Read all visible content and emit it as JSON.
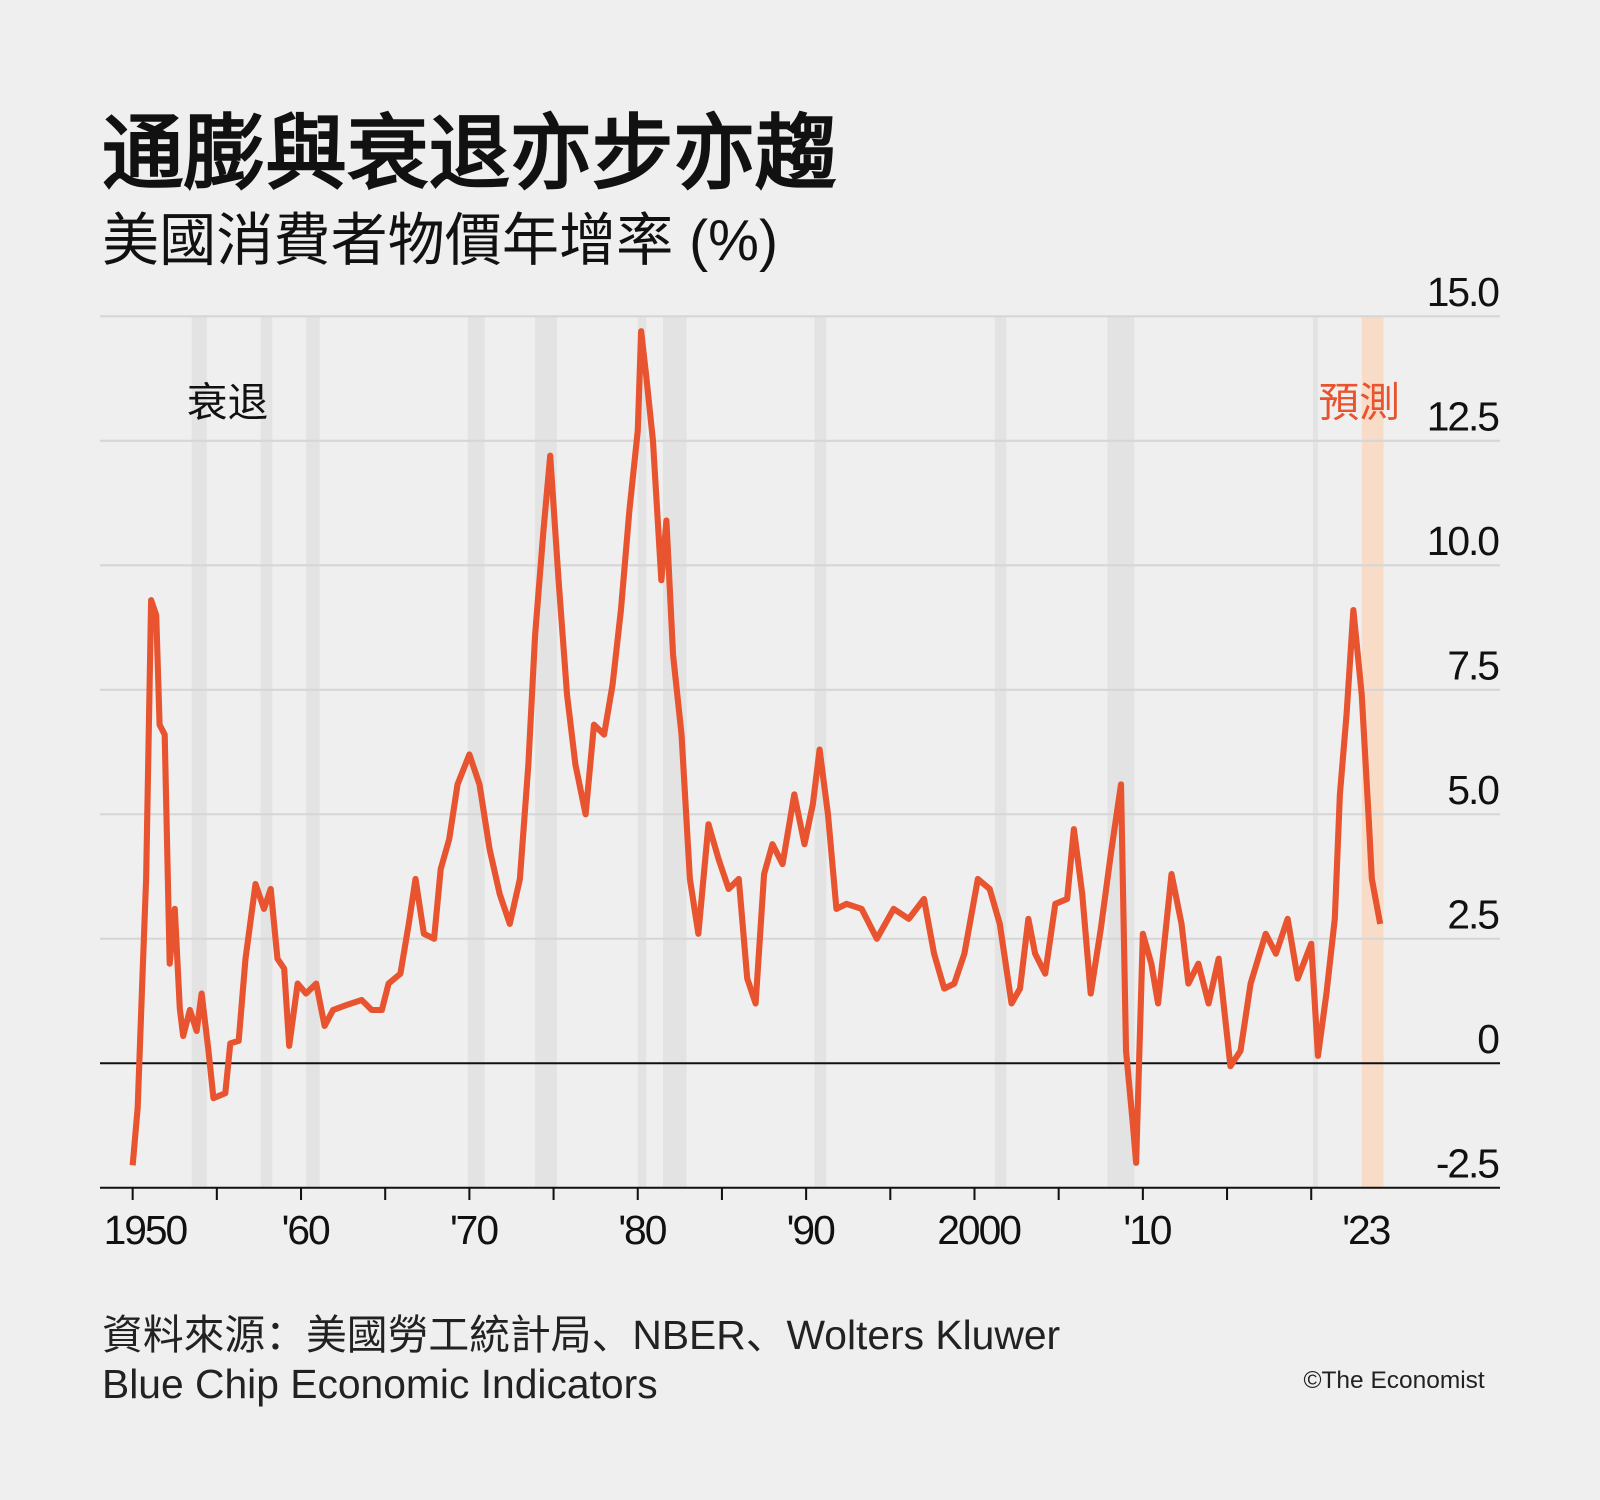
{
  "title": "通膨與衰退亦步亦趨",
  "subtitle": "美國消費者物價年增率 (%)",
  "source_line1": "資料來源：美國勞工統計局、NBER、Wolters Kluwer",
  "source_line2": "Blue Chip Economic Indicators",
  "copyright": "©The Economist",
  "colors": {
    "line": "#e8542f",
    "forecast_band": "#f9dcc8",
    "recession_band": "#e3e3e3",
    "background": "#efefef",
    "forecast_label": "#e8542f"
  },
  "chart_data": {
    "type": "line",
    "title": "通膨與衰退亦步亦趨",
    "ylabel": "美國消費者物價年增率 (%)",
    "ylim": [
      -2.5,
      15
    ],
    "yticks": [
      "15.0",
      "12.5",
      "10.0",
      "7.5",
      "5.0",
      "2.5",
      "0",
      "-2.5"
    ],
    "ytick_values": [
      15,
      12.5,
      10,
      7.5,
      5,
      2.5,
      0,
      -2.5
    ],
    "xlim": [
      1948,
      2027
    ],
    "xticks": [
      {
        "year": 1950,
        "label": "1950"
      },
      {
        "year": 1960,
        "label": "'60"
      },
      {
        "year": 1970,
        "label": "'70"
      },
      {
        "year": 1980,
        "label": "'80"
      },
      {
        "year": 1990,
        "label": "'90"
      },
      {
        "year": 2000,
        "label": "2000"
      },
      {
        "year": 2010,
        "label": "'10"
      },
      {
        "year": 2023,
        "label": "'23"
      }
    ],
    "minor_tick_years": [
      1950,
      1955,
      1960,
      1965,
      1970,
      1975,
      1980,
      1985,
      1990,
      1995,
      2000,
      2005,
      2010,
      2015,
      2020
    ],
    "grid": true,
    "recession_label": "衰退",
    "forecast_label": "預測",
    "forecast_period": [
      2023.0,
      2024.3
    ],
    "recessions": [
      [
        1953.5,
        1954.4
      ],
      [
        1957.6,
        1958.3
      ],
      [
        1960.3,
        1961.1
      ],
      [
        1969.9,
        1970.9
      ],
      [
        1973.9,
        1975.2
      ],
      [
        1980.0,
        1980.5
      ],
      [
        1981.5,
        1982.9
      ],
      [
        1990.5,
        1991.2
      ],
      [
        2001.2,
        2001.9
      ],
      [
        2007.9,
        2009.5
      ],
      [
        2020.1,
        2020.4
      ]
    ],
    "series": [
      {
        "points": [
          [
            1950.0,
            -2.05
          ],
          [
            1950.3,
            -0.9
          ],
          [
            1950.6,
            1.9
          ],
          [
            1950.8,
            3.7
          ],
          [
            1951.1,
            9.3
          ],
          [
            1951.4,
            9.0
          ],
          [
            1951.6,
            6.8
          ],
          [
            1951.9,
            6.6
          ],
          [
            1952.2,
            2.0
          ],
          [
            1952.5,
            3.1
          ],
          [
            1952.8,
            1.1
          ],
          [
            1953.0,
            0.55
          ],
          [
            1953.4,
            1.07
          ],
          [
            1953.8,
            0.65
          ],
          [
            1954.1,
            1.4
          ],
          [
            1954.5,
            0.25
          ],
          [
            1954.8,
            -0.7
          ],
          [
            1955.5,
            -0.6
          ],
          [
            1955.8,
            0.4
          ],
          [
            1956.3,
            0.45
          ],
          [
            1956.7,
            2.1
          ],
          [
            1957.3,
            3.6
          ],
          [
            1957.8,
            3.1
          ],
          [
            1958.2,
            3.5
          ],
          [
            1958.6,
            2.1
          ],
          [
            1959.0,
            1.9
          ],
          [
            1959.3,
            0.35
          ],
          [
            1959.8,
            1.6
          ],
          [
            1960.3,
            1.4
          ],
          [
            1960.9,
            1.6
          ],
          [
            1961.4,
            0.75
          ],
          [
            1961.9,
            1.07
          ],
          [
            1962.7,
            1.17
          ],
          [
            1963.6,
            1.27
          ],
          [
            1964.2,
            1.07
          ],
          [
            1964.8,
            1.07
          ],
          [
            1965.2,
            1.6
          ],
          [
            1965.9,
            1.8
          ],
          [
            1966.4,
            2.8
          ],
          [
            1966.8,
            3.7
          ],
          [
            1967.3,
            2.6
          ],
          [
            1967.9,
            2.5
          ],
          [
            1968.3,
            3.9
          ],
          [
            1968.8,
            4.5
          ],
          [
            1969.3,
            5.6
          ],
          [
            1970.0,
            6.2
          ],
          [
            1970.6,
            5.6
          ],
          [
            1971.2,
            4.3
          ],
          [
            1971.8,
            3.4
          ],
          [
            1972.4,
            2.8
          ],
          [
            1973.0,
            3.7
          ],
          [
            1973.5,
            6.0
          ],
          [
            1973.9,
            8.6
          ],
          [
            1974.4,
            10.7
          ],
          [
            1974.8,
            12.2
          ],
          [
            1975.3,
            9.7
          ],
          [
            1975.8,
            7.4
          ],
          [
            1976.3,
            6.0
          ],
          [
            1976.9,
            5.0
          ],
          [
            1977.4,
            6.8
          ],
          [
            1978.0,
            6.6
          ],
          [
            1978.5,
            7.6
          ],
          [
            1979.0,
            9.1
          ],
          [
            1979.5,
            11.1
          ],
          [
            1980.0,
            12.7
          ],
          [
            1980.2,
            14.7
          ],
          [
            1980.5,
            13.8
          ],
          [
            1980.9,
            12.5
          ],
          [
            1981.4,
            9.7
          ],
          [
            1981.7,
            10.9
          ],
          [
            1982.1,
            8.2
          ],
          [
            1982.6,
            6.6
          ],
          [
            1983.1,
            3.7
          ],
          [
            1983.6,
            2.6
          ],
          [
            1984.2,
            4.8
          ],
          [
            1984.8,
            4.1
          ],
          [
            1985.4,
            3.5
          ],
          [
            1986.0,
            3.7
          ],
          [
            1986.5,
            1.7
          ],
          [
            1987.0,
            1.2
          ],
          [
            1987.5,
            3.8
          ],
          [
            1988.0,
            4.4
          ],
          [
            1988.6,
            4.0
          ],
          [
            1989.3,
            5.4
          ],
          [
            1989.9,
            4.4
          ],
          [
            1990.4,
            5.2
          ],
          [
            1990.8,
            6.3
          ],
          [
            1991.3,
            5.0
          ],
          [
            1991.8,
            3.1
          ],
          [
            1992.4,
            3.2
          ],
          [
            1993.3,
            3.1
          ],
          [
            1994.2,
            2.5
          ],
          [
            1995.2,
            3.1
          ],
          [
            1996.1,
            2.9
          ],
          [
            1997.0,
            3.3
          ],
          [
            1997.6,
            2.2
          ],
          [
            1998.2,
            1.5
          ],
          [
            1998.8,
            1.6
          ],
          [
            1999.4,
            2.2
          ],
          [
            2000.2,
            3.7
          ],
          [
            2000.9,
            3.5
          ],
          [
            2001.5,
            2.8
          ],
          [
            2002.2,
            1.2
          ],
          [
            2002.7,
            1.5
          ],
          [
            2003.2,
            2.9
          ],
          [
            2003.6,
            2.2
          ],
          [
            2004.2,
            1.8
          ],
          [
            2004.8,
            3.2
          ],
          [
            2005.5,
            3.3
          ],
          [
            2005.9,
            4.7
          ],
          [
            2006.4,
            3.4
          ],
          [
            2006.9,
            1.4
          ],
          [
            2007.5,
            2.7
          ],
          [
            2008.1,
            4.2
          ],
          [
            2008.7,
            5.6
          ],
          [
            2009.0,
            0.25
          ],
          [
            2009.4,
            -1.2
          ],
          [
            2009.6,
            -2.0
          ],
          [
            2010.0,
            2.6
          ],
          [
            2010.5,
            2.0
          ],
          [
            2010.9,
            1.2
          ],
          [
            2011.7,
            3.8
          ],
          [
            2012.3,
            2.8
          ],
          [
            2012.7,
            1.6
          ],
          [
            2013.3,
            2.0
          ],
          [
            2013.9,
            1.2
          ],
          [
            2014.5,
            2.1
          ],
          [
            2015.2,
            -0.06
          ],
          [
            2015.8,
            0.25
          ],
          [
            2016.4,
            1.6
          ],
          [
            2017.3,
            2.6
          ],
          [
            2017.9,
            2.2
          ],
          [
            2018.6,
            2.9
          ],
          [
            2019.2,
            1.7
          ],
          [
            2020.0,
            2.4
          ],
          [
            2020.4,
            0.15
          ],
          [
            2020.9,
            1.4
          ],
          [
            2021.4,
            2.9
          ],
          [
            2021.7,
            5.4
          ],
          [
            2022.1,
            7.0
          ],
          [
            2022.5,
            9.1
          ],
          [
            2023.0,
            7.4
          ],
          [
            2023.4,
            5.0
          ],
          [
            2023.6,
            3.7
          ],
          [
            2024.1,
            2.8
          ]
        ]
      }
    ]
  }
}
